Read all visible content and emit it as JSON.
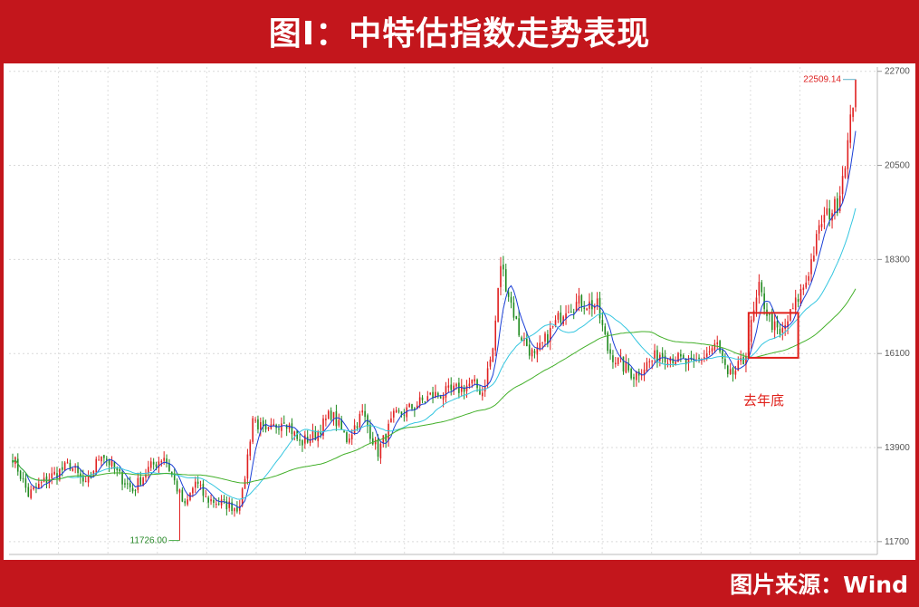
{
  "header": {
    "title": "图I：中特估指数走势表现"
  },
  "footer": {
    "source": "图片来源：Wind"
  },
  "colors": {
    "banner": "#c3161c",
    "up_candle": "#e02020",
    "down_candle": "#1f8a1f",
    "ma_short": "#1a3fd6",
    "ma_mid": "#35c6e0",
    "ma_long": "#43b02a",
    "annotation_box": "#e0201a"
  },
  "chart_data": {
    "type": "line",
    "subtype": "candlestick-with-moving-averages",
    "title": "",
    "xlabel": "",
    "ylabel": "",
    "ylim": [
      11400,
      22800
    ],
    "y_axis_side": "right",
    "y_ticks": [
      "22700",
      "20500",
      "18300",
      "16100",
      "13900",
      "11700"
    ],
    "grid": true,
    "max_label": "22509.14",
    "min_label": "11726.00",
    "annotation": {
      "text": "去年底",
      "box_y_range": [
        16000,
        17050
      ]
    },
    "anchors": [
      {
        "i": 0,
        "v": 13700
      },
      {
        "i": 6,
        "v": 12800
      },
      {
        "i": 14,
        "v": 13200
      },
      {
        "i": 22,
        "v": 13500
      },
      {
        "i": 28,
        "v": 13000
      },
      {
        "i": 34,
        "v": 13800
      },
      {
        "i": 40,
        "v": 13300
      },
      {
        "i": 46,
        "v": 12900
      },
      {
        "i": 52,
        "v": 13400
      },
      {
        "i": 58,
        "v": 13700
      },
      {
        "i": 62,
        "v": 13100
      },
      {
        "i": 66,
        "v": 12500
      },
      {
        "i": 70,
        "v": 13100
      },
      {
        "i": 74,
        "v": 12700
      },
      {
        "i": 80,
        "v": 12600
      },
      {
        "i": 86,
        "v": 12500
      },
      {
        "i": 88,
        "v": 12800
      },
      {
        "i": 92,
        "v": 14600
      },
      {
        "i": 97,
        "v": 14200
      },
      {
        "i": 104,
        "v": 14600
      },
      {
        "i": 110,
        "v": 14000
      },
      {
        "i": 116,
        "v": 14200
      },
      {
        "i": 122,
        "v": 14700
      },
      {
        "i": 128,
        "v": 14100
      },
      {
        "i": 134,
        "v": 14700
      },
      {
        "i": 140,
        "v": 13800
      },
      {
        "i": 146,
        "v": 14600
      },
      {
        "i": 152,
        "v": 14800
      },
      {
        "i": 160,
        "v": 15100
      },
      {
        "i": 168,
        "v": 15200
      },
      {
        "i": 176,
        "v": 15400
      },
      {
        "i": 180,
        "v": 15200
      },
      {
        "i": 184,
        "v": 16200
      },
      {
        "i": 187,
        "v": 18200
      },
      {
        "i": 190,
        "v": 17500
      },
      {
        "i": 194,
        "v": 16600
      },
      {
        "i": 200,
        "v": 16000
      },
      {
        "i": 206,
        "v": 16600
      },
      {
        "i": 212,
        "v": 17200
      },
      {
        "i": 218,
        "v": 17300
      },
      {
        "i": 224,
        "v": 17200
      },
      {
        "i": 228,
        "v": 16200
      },
      {
        "i": 232,
        "v": 15900
      },
      {
        "i": 238,
        "v": 15600
      },
      {
        "i": 242,
        "v": 15800
      },
      {
        "i": 248,
        "v": 16100
      },
      {
        "i": 254,
        "v": 16000
      },
      {
        "i": 260,
        "v": 15800
      },
      {
        "i": 266,
        "v": 16100
      },
      {
        "i": 270,
        "v": 16300
      },
      {
        "i": 274,
        "v": 15500
      },
      {
        "i": 280,
        "v": 15900
      },
      {
        "i": 286,
        "v": 17600
      },
      {
        "i": 290,
        "v": 16900
      },
      {
        "i": 294,
        "v": 16500
      },
      {
        "i": 298,
        "v": 17000
      },
      {
        "i": 304,
        "v": 17800
      },
      {
        "i": 310,
        "v": 19200
      },
      {
        "i": 316,
        "v": 19600
      },
      {
        "i": 320,
        "v": 21000
      },
      {
        "i": 323,
        "v": 22509
      }
    ],
    "candle_count": 324,
    "spikes": [
      {
        "i": 64,
        "v": 11726
      }
    ],
    "moving_averages": [
      "ma_short",
      "ma_mid",
      "ma_long"
    ]
  }
}
